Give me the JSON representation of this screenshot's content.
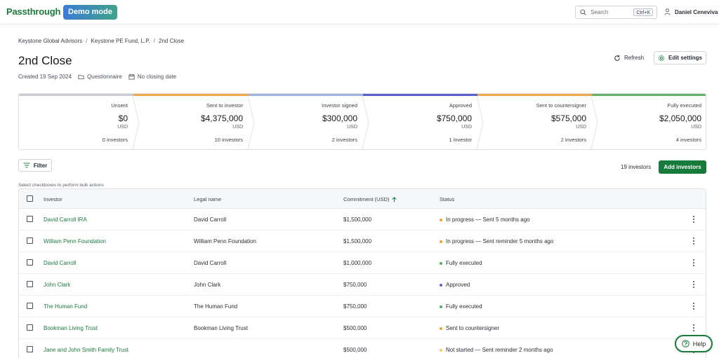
{
  "app": {
    "logo": "Passthrough",
    "badge": "Demo mode"
  },
  "header": {
    "search_placeholder": "Search",
    "search_shortcut": "Ctrl+K",
    "user_name": "Daniel Ceneviva"
  },
  "breadcrumb": [
    "Keystone Global Advisors",
    "Keystone PE Fund, L.P.",
    "2nd Close"
  ],
  "page": {
    "title": "2nd Close",
    "created": "Created 19 Sep 2024",
    "questionnaire": "Questionnaire",
    "closing_date": "No closing date",
    "refresh_label": "Refresh",
    "edit_label": "Edit settings"
  },
  "stages": [
    {
      "label": "Unsent",
      "value": "$0",
      "currency": "USD",
      "count": "0 investors",
      "color": "#c9ccd0"
    },
    {
      "label": "Sent to investor",
      "value": "$4,375,000",
      "currency": "USD",
      "count": "10 investors",
      "color": "#f0a64a"
    },
    {
      "label": "Investor signed",
      "value": "$300,000",
      "currency": "USD",
      "count": "2 investors",
      "color": "#9fb4e0"
    },
    {
      "label": "Approved",
      "value": "$750,000",
      "currency": "USD",
      "count": "1 investor",
      "color": "#5a62c9"
    },
    {
      "label": "Sent to countersigner",
      "value": "$575,000",
      "currency": "USD",
      "count": "2 investors",
      "color": "#f0a64a"
    },
    {
      "label": "Fully executed",
      "value": "$2,050,000",
      "currency": "USD",
      "count": "4 investors",
      "color": "#5fb36a"
    }
  ],
  "toolbar": {
    "filter_label": "Filter",
    "investor_count": "19 investors",
    "add_label": "Add investors",
    "bulk_hint": "Select checkboxes to perform bulk actions"
  },
  "table": {
    "columns": {
      "investor": "Investor",
      "legal": "Legal name",
      "commitment": "Commitment (USD)",
      "status": "Status"
    },
    "rows": [
      {
        "investor": "David Carroll IRA",
        "legal": "David Carroll",
        "commitment": "$1,500,000",
        "status": "In progress — Sent 5 months ago",
        "dot": "#f0a030"
      },
      {
        "investor": "William Penn Foundation",
        "legal": "William Penn Foundation",
        "commitment": "$1,500,000",
        "status": "In progress — Sent reminder 5 months ago",
        "dot": "#f0a030"
      },
      {
        "investor": "David Carroll",
        "legal": "David Carroll",
        "commitment": "$1,000,000",
        "status": "Fully executed",
        "dot": "#4caf60"
      },
      {
        "investor": "John Clark",
        "legal": "John Clark",
        "commitment": "$750,000",
        "status": "Approved",
        "dot": "#5a62c9"
      },
      {
        "investor": "The Human Fund",
        "legal": "The Human Fund",
        "commitment": "$750,000",
        "status": "Fully executed",
        "dot": "#4caf60"
      },
      {
        "investor": "Bookman Living Trust",
        "legal": "Bookman Living Trust",
        "commitment": "$500,000",
        "status": "Sent to countersigner",
        "dot": "#f0a030"
      },
      {
        "investor": "Jane and John Smith Family Trust",
        "legal": "",
        "commitment": "$500,000",
        "status": "Not started — Sent reminder 2 months ago",
        "dot": "#f3c96a"
      }
    ]
  },
  "help": {
    "label": "Help"
  }
}
